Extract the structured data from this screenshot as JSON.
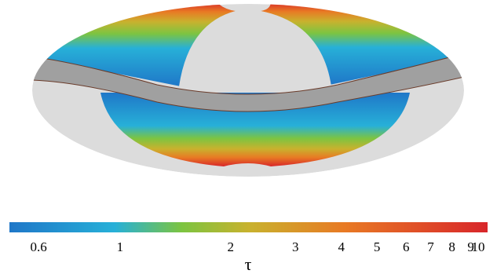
{
  "chart_data": {
    "type": "heatmap",
    "projection": "mollweide",
    "colorbar": {
      "label": "τ",
      "scale": "log",
      "range": [
        0.5,
        10
      ],
      "ticks": [
        {
          "value": 0.6,
          "label": "0.6"
        },
        {
          "value": 1,
          "label": "1"
        },
        {
          "value": 2,
          "label": "2"
        },
        {
          "value": 3,
          "label": "3"
        },
        {
          "value": 4,
          "label": "4"
        },
        {
          "value": 5,
          "label": "5"
        },
        {
          "value": 6,
          "label": "6"
        },
        {
          "value": 7,
          "label": "7"
        },
        {
          "value": 8,
          "label": "8"
        },
        {
          "value": 9,
          "label": "9"
        },
        {
          "value": 10,
          "label": "10"
        }
      ],
      "colormap": [
        "#1f77c8",
        "#27b0d8",
        "#7cc441",
        "#c8b22e",
        "#e87a24",
        "#d8262a"
      ]
    },
    "map": {
      "masked_color": "#dcdcdc",
      "band_color": "#a0a0a0",
      "values_at_poles": 10,
      "values_near_band": 0.6
    }
  }
}
